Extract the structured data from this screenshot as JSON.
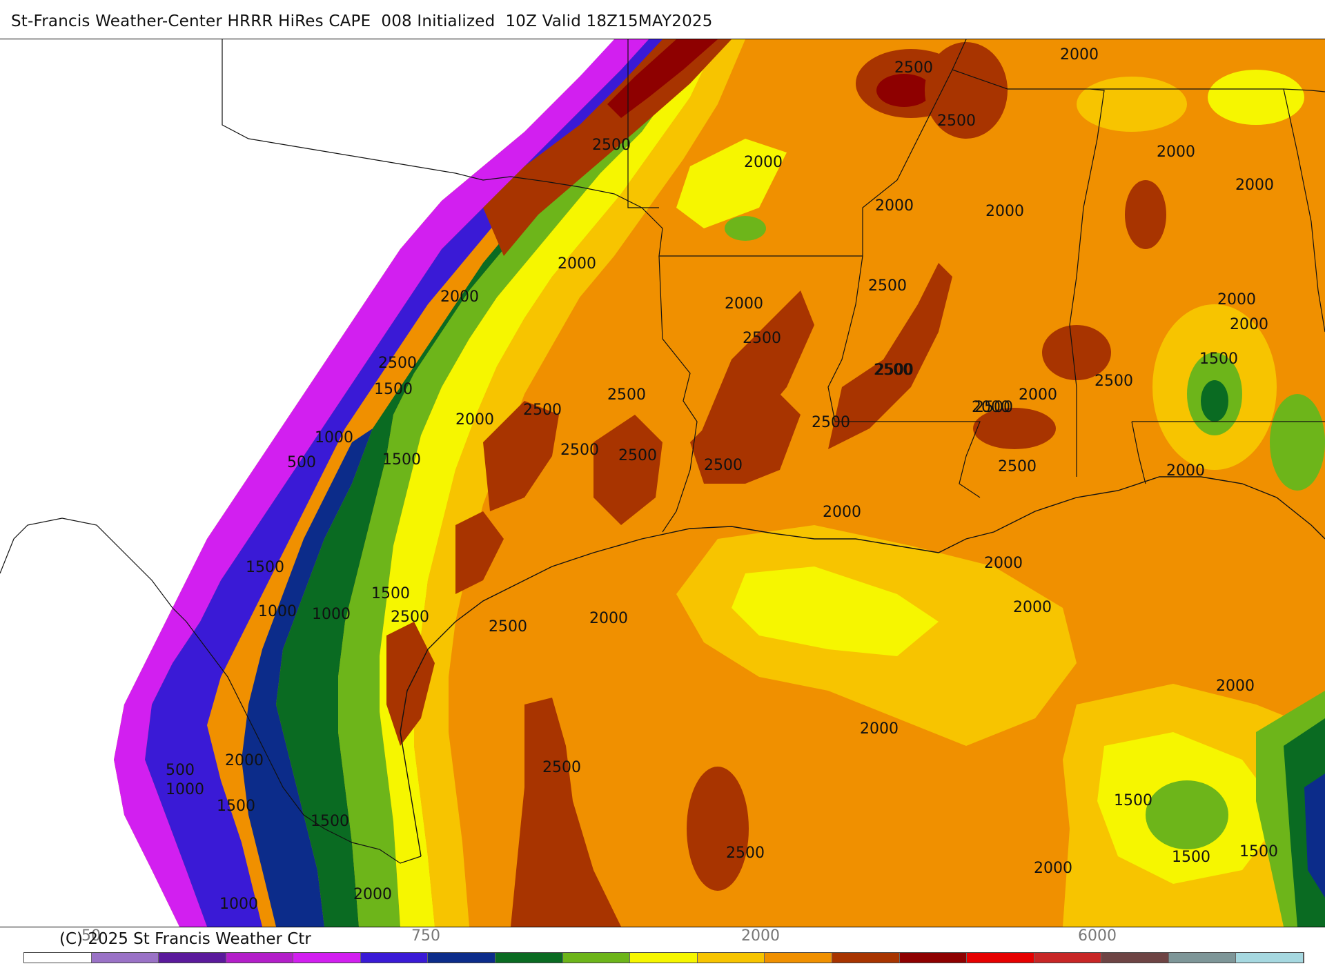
{
  "title": "St-Francis Weather-Center HRRR HiRes CAPE  008 Initialized  10Z Valid 18Z15MAY2025",
  "credit": "(C) 2025 St Francis Weather Ctr",
  "colorbar": {
    "tick_labels": [
      "50",
      "750",
      "2000",
      "6000"
    ],
    "colors": [
      "#ffffff",
      "#9a72c6",
      "#5b1a9c",
      "#b31ec9",
      "#d21ff0",
      "#3a1ad6",
      "#0c2c8a",
      "#0a6b22",
      "#6db51a",
      "#f6f600",
      "#f7c400",
      "#f09000",
      "#a83400",
      "#8e0000",
      "#e60000",
      "#c82626",
      "#6e4444",
      "#7e9698",
      "#a6d8e0"
    ]
  },
  "contour_labels": [
    "2000",
    "2500",
    "2500",
    "2500",
    "2000",
    "2000",
    "2000",
    "2000",
    "2000",
    "2000",
    "2000",
    "2000",
    "2500",
    "2000",
    "2000",
    "2500",
    "2000",
    "2500",
    "2500",
    "2500",
    "1500",
    "2000",
    "1500",
    "2500",
    "2500",
    "2500",
    "2500",
    "2000",
    "2500",
    "1000",
    "500",
    "1500",
    "2500",
    "2500",
    "2500",
    "2500",
    "2000",
    "2000",
    "1500",
    "1500",
    "1000",
    "1000",
    "2500",
    "2500",
    "2000",
    "2000",
    "2000",
    "2000",
    "2500",
    "2000",
    "500",
    "1000",
    "1500",
    "1500",
    "2000",
    "1500",
    "2500",
    "1500",
    "1500",
    "2000",
    "1000",
    "2000"
  ],
  "icons": {
    "map": "weather-map-image"
  }
}
